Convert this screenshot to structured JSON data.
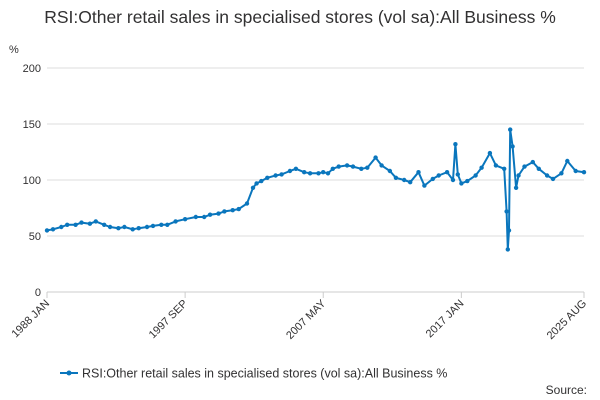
{
  "chart_data": {
    "type": "line",
    "title": "RSI:Other retail sales in specialised stores (vol sa):All Business %",
    "unit_label": "%",
    "source_label": "Source:",
    "ylim": [
      0,
      200
    ],
    "y_ticks": [
      0,
      50,
      100,
      150,
      200
    ],
    "x_range": [
      "1988-01",
      "2025-08"
    ],
    "x_tick_labels": [
      {
        "date": "1988-01",
        "label": "1988 JAN"
      },
      {
        "date": "1997-09",
        "label": "1997 SEP"
      },
      {
        "date": "2007-05",
        "label": "2007 MAY"
      },
      {
        "date": "2017-01",
        "label": "2017 JAN"
      },
      {
        "date": "2025-08",
        "label": "2025 AUG"
      }
    ],
    "grid": "horizontal",
    "legend_position": "bottom",
    "colors": {
      "series": "#0a76bd",
      "grid": "#dddddd",
      "axis": "#cccccc",
      "text": "#323132"
    },
    "series": [
      {
        "name": "RSI:Other retail sales in specialised stores (vol sa):All Business %",
        "points": [
          [
            "1988-01",
            55
          ],
          [
            "1988-06",
            56
          ],
          [
            "1989-01",
            58
          ],
          [
            "1989-06",
            60
          ],
          [
            "1990-01",
            60
          ],
          [
            "1990-06",
            62
          ],
          [
            "1991-01",
            61
          ],
          [
            "1991-06",
            63
          ],
          [
            "1992-01",
            60
          ],
          [
            "1992-06",
            58
          ],
          [
            "1993-01",
            57
          ],
          [
            "1993-06",
            58
          ],
          [
            "1994-01",
            56
          ],
          [
            "1994-06",
            57
          ],
          [
            "1995-01",
            58
          ],
          [
            "1995-06",
            59
          ],
          [
            "1996-01",
            60
          ],
          [
            "1996-06",
            60
          ],
          [
            "1997-01",
            63
          ],
          [
            "1997-09",
            65
          ],
          [
            "1998-06",
            67
          ],
          [
            "1999-01",
            67
          ],
          [
            "1999-06",
            69
          ],
          [
            "2000-01",
            70
          ],
          [
            "2000-06",
            72
          ],
          [
            "2001-01",
            73
          ],
          [
            "2001-06",
            74
          ],
          [
            "2002-01",
            79
          ],
          [
            "2002-06",
            93
          ],
          [
            "2002-09",
            97
          ],
          [
            "2003-01",
            99
          ],
          [
            "2003-06",
            102
          ],
          [
            "2004-01",
            104
          ],
          [
            "2004-06",
            105
          ],
          [
            "2005-01",
            108
          ],
          [
            "2005-06",
            110
          ],
          [
            "2006-01",
            107
          ],
          [
            "2006-06",
            106
          ],
          [
            "2007-01",
            106
          ],
          [
            "2007-05",
            107
          ],
          [
            "2007-09",
            106
          ],
          [
            "2008-01",
            110
          ],
          [
            "2008-06",
            112
          ],
          [
            "2009-01",
            113
          ],
          [
            "2009-06",
            112
          ],
          [
            "2010-01",
            110
          ],
          [
            "2010-06",
            111
          ],
          [
            "2011-01",
            120
          ],
          [
            "2011-06",
            113
          ],
          [
            "2012-01",
            108
          ],
          [
            "2012-06",
            102
          ],
          [
            "2013-01",
            100
          ],
          [
            "2013-06",
            98
          ],
          [
            "2014-01",
            107
          ],
          [
            "2014-06",
            95
          ],
          [
            "2015-01",
            101
          ],
          [
            "2015-06",
            104
          ],
          [
            "2016-01",
            107
          ],
          [
            "2016-06",
            100
          ],
          [
            "2016-08",
            132
          ],
          [
            "2016-10",
            105
          ],
          [
            "2017-01",
            97
          ],
          [
            "2017-06",
            99
          ],
          [
            "2018-01",
            104
          ],
          [
            "2018-06",
            111
          ],
          [
            "2019-01",
            124
          ],
          [
            "2019-06",
            113
          ],
          [
            "2020-01",
            110
          ],
          [
            "2020-03",
            72
          ],
          [
            "2020-04",
            38
          ],
          [
            "2020-05",
            55
          ],
          [
            "2020-06",
            145
          ],
          [
            "2020-08",
            130
          ],
          [
            "2020-11",
            93
          ],
          [
            "2021-01",
            104
          ],
          [
            "2021-06",
            112
          ],
          [
            "2022-01",
            116
          ],
          [
            "2022-06",
            110
          ],
          [
            "2023-01",
            104
          ],
          [
            "2023-06",
            101
          ],
          [
            "2024-01",
            106
          ],
          [
            "2024-06",
            117
          ],
          [
            "2025-01",
            108
          ],
          [
            "2025-08",
            107
          ]
        ]
      }
    ]
  }
}
